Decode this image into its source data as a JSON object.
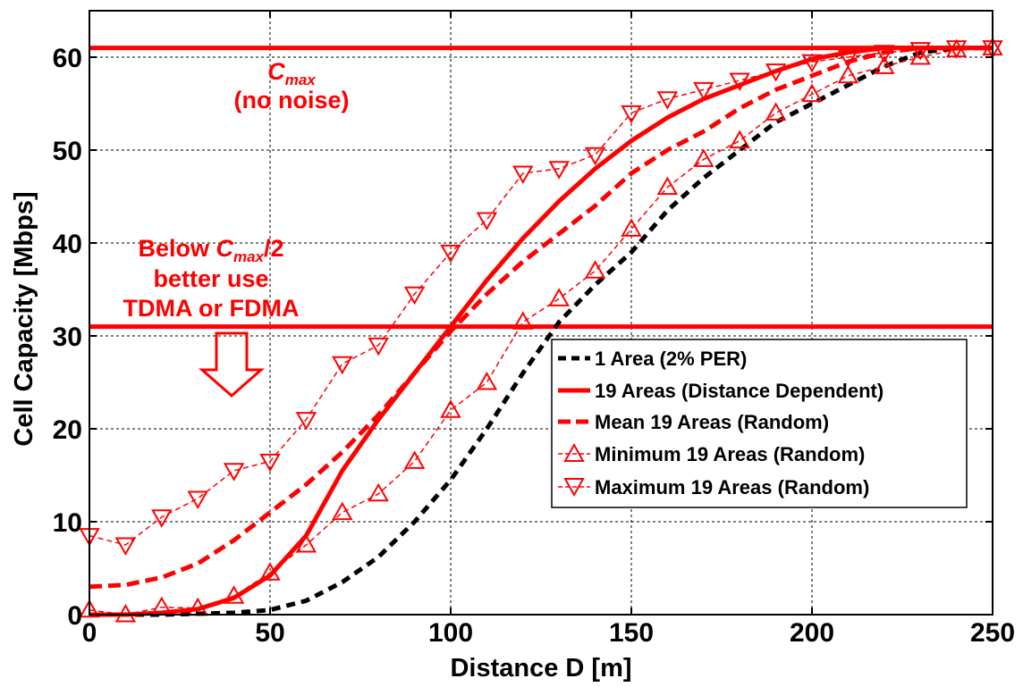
{
  "chart_data": {
    "type": "line",
    "xlabel": "Distance D [m]",
    "ylabel": "Cell Capacity [Mbps]",
    "xlim": [
      0,
      250
    ],
    "ylim": [
      0,
      65
    ],
    "xticks": [
      0,
      50,
      100,
      150,
      200,
      250
    ],
    "yticks": [
      0,
      10,
      20,
      30,
      40,
      50,
      60
    ],
    "grid": true,
    "legend_position": "lower-right",
    "colors": {
      "red": "#ff0000",
      "black": "#000000"
    },
    "reference_lines": [
      {
        "y": 61,
        "annotation": {
          "main": "C",
          "sub": "max",
          "line2": "(no noise)"
        }
      },
      {
        "y": 31,
        "annotation": {
          "line1_prefix": "Below ",
          "C": "C",
          "sub": "max",
          "suffix": "/2",
          "line2": "better use",
          "line3": "TDMA or FDMA"
        }
      }
    ],
    "series": [
      {
        "name": "1 Area (2% PER)",
        "color": "#000000",
        "style": "dashed-thick",
        "marker": "none",
        "x": [
          0,
          10,
          20,
          30,
          40,
          50,
          60,
          70,
          80,
          90,
          100,
          110,
          120,
          130,
          140,
          150,
          160,
          170,
          180,
          190,
          200,
          210,
          220,
          230,
          240,
          250
        ],
        "y": [
          0,
          0,
          0,
          0.1,
          0.2,
          0.5,
          1.5,
          3.5,
          6.2,
          10,
          14.5,
          20,
          26,
          31.5,
          35.5,
          39,
          43.5,
          47,
          50,
          53,
          55,
          57,
          59,
          60.5,
          61,
          61
        ]
      },
      {
        "name": "19 Areas (Distance Dependent)",
        "color": "#ff0000",
        "style": "solid-thick",
        "marker": "none",
        "x": [
          0,
          10,
          20,
          30,
          40,
          50,
          60,
          70,
          80,
          90,
          100,
          110,
          120,
          130,
          140,
          150,
          160,
          170,
          180,
          190,
          200,
          210,
          220,
          230,
          240,
          250
        ],
        "y": [
          0,
          0,
          0.2,
          0.6,
          1.8,
          4.2,
          8.5,
          15.5,
          21,
          26,
          31,
          36,
          40.5,
          44.5,
          48,
          51,
          53.5,
          55.5,
          57,
          58.5,
          59.8,
          60.5,
          61,
          61,
          61,
          61
        ]
      },
      {
        "name": "Mean 19 Areas (Random)",
        "color": "#ff0000",
        "style": "dashed-thick",
        "marker": "none",
        "x": [
          0,
          10,
          20,
          30,
          40,
          50,
          60,
          70,
          80,
          90,
          100,
          110,
          120,
          130,
          140,
          150,
          160,
          170,
          180,
          190,
          200,
          210,
          220,
          230,
          240,
          250
        ],
        "y": [
          3,
          3.2,
          4,
          5.5,
          8,
          11,
          14,
          17.5,
          21.5,
          26,
          30.5,
          34.5,
          38,
          41,
          44,
          47.5,
          50,
          52,
          54.5,
          56.5,
          58,
          59.5,
          60.5,
          61,
          61,
          61
        ]
      },
      {
        "name": "Minimum 19 Areas (Random)",
        "color": "#ff0000",
        "style": "dashed-thin",
        "marker": "triangle-up",
        "x": [
          0,
          10,
          20,
          30,
          40,
          50,
          60,
          70,
          80,
          90,
          100,
          110,
          120,
          130,
          140,
          150,
          160,
          170,
          180,
          190,
          200,
          210,
          220,
          230,
          240,
          250
        ],
        "y": [
          0.5,
          0,
          0.8,
          0.7,
          2,
          4.5,
          7.5,
          11,
          13,
          16.5,
          22,
          25,
          31.5,
          34,
          37,
          41.5,
          46,
          49,
          51,
          54,
          56,
          58,
          59,
          60,
          60.8,
          61
        ]
      },
      {
        "name": "Maximum 19 Areas (Random)",
        "color": "#ff0000",
        "style": "dashed-thin",
        "marker": "triangle-down",
        "x": [
          0,
          10,
          20,
          30,
          40,
          50,
          60,
          70,
          80,
          90,
          100,
          110,
          120,
          130,
          140,
          150,
          160,
          170,
          180,
          190,
          200,
          210,
          220,
          230,
          240,
          250
        ],
        "y": [
          8.5,
          7.5,
          10.5,
          12.5,
          15.5,
          16.5,
          21,
          27,
          29,
          34.5,
          39,
          42.5,
          47.5,
          48,
          49.5,
          54,
          55.5,
          56.5,
          57.5,
          58.5,
          59.5,
          60,
          60.5,
          60.8,
          61,
          61
        ]
      }
    ]
  }
}
